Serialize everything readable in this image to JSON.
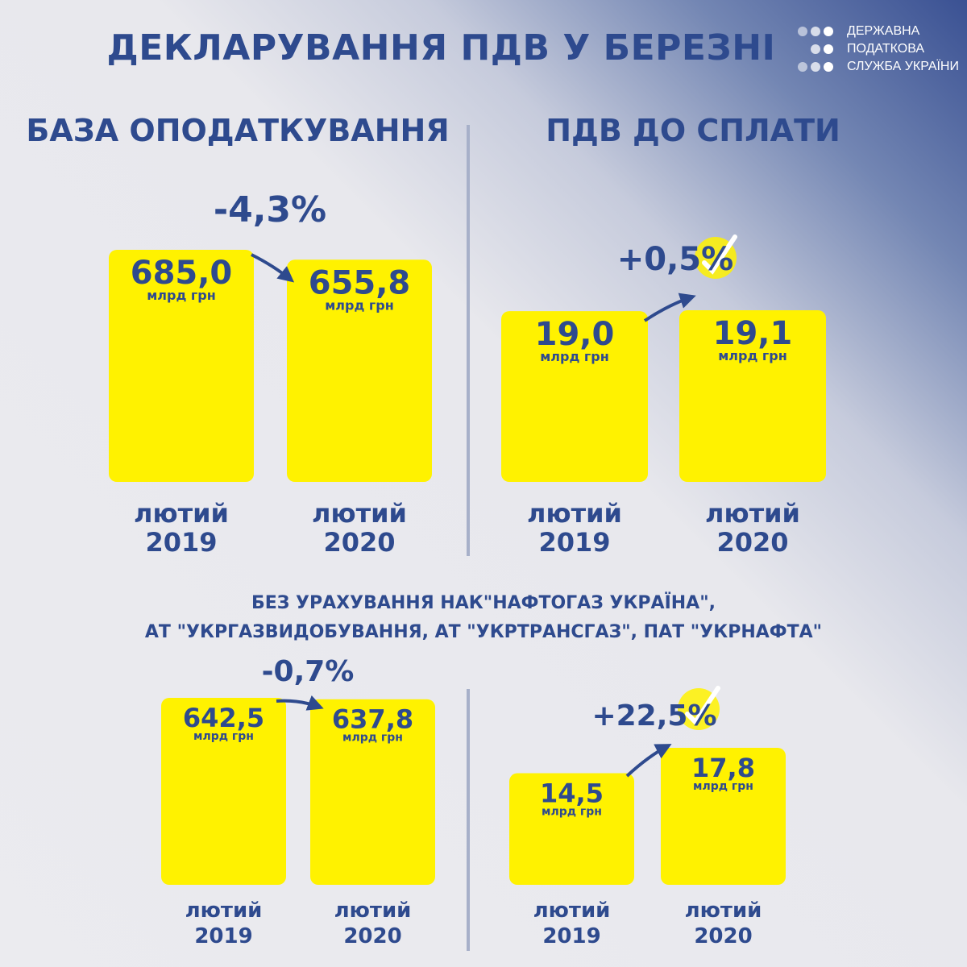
{
  "title": "ДЕКЛАРУВАННЯ ПДВ У БЕРЕЗНІ",
  "logo": {
    "lines": [
      "ДЕРЖАВНА",
      "ПОДАТКОВА",
      "СЛУЖБА УКРАЇНИ"
    ],
    "dot_color": "#ffffff"
  },
  "sections": {
    "left": "БАЗА ОПОДАТКУВАННЯ",
    "right": "ПДВ ДО СПЛАТИ"
  },
  "note": {
    "line1": "БЕЗ УРАХУВАННЯ НАК\"НАФТОГАЗ УКРАЇНА\",",
    "line2": "АТ \"УКРГАЗВИДОБУВАННЯ, АТ \"УКРТРАНСГАЗ\", ПАТ \"УКРНАФТА\""
  },
  "colors": {
    "bar": "#fff200",
    "text": "#2e4a8e",
    "divider": "#a7b0c9"
  },
  "chart_data": [
    {
      "type": "bar",
      "title": "БАЗА ОПОДАТКУВАННЯ",
      "categories": [
        "лютий 2019",
        "лютий 2020"
      ],
      "values": [
        685.0,
        655.8
      ],
      "value_labels": [
        "685,0",
        "655,8"
      ],
      "unit": "млрд грн",
      "change": "-4,3%",
      "change_icon": "arrow-icon"
    },
    {
      "type": "bar",
      "title": "ПДВ ДО СПЛАТИ",
      "categories": [
        "лютий 2019",
        "лютий 2020"
      ],
      "values": [
        19.0,
        19.1
      ],
      "value_labels": [
        "19,0",
        "19,1"
      ],
      "unit": "млрд грн",
      "change": "+0,5%",
      "change_icon": "checkmark-circle-icon"
    },
    {
      "type": "bar",
      "title": "БАЗА ОПОДАТКУВАННЯ",
      "categories": [
        "лютий 2019",
        "лютий 2020"
      ],
      "values": [
        642.5,
        637.8
      ],
      "value_labels": [
        "642,5",
        "637,8"
      ],
      "unit": "млрд грн",
      "change": "-0,7%",
      "change_icon": "arrow-icon"
    },
    {
      "type": "bar",
      "title": "ПДВ ДО СПЛАТИ",
      "categories": [
        "лютий 2019",
        "лютий 2020"
      ],
      "values": [
        14.5,
        17.8
      ],
      "value_labels": [
        "14,5",
        "17,8"
      ],
      "unit": "млрд грн",
      "change": "+22,5%",
      "change_icon": "checkmark-circle-icon"
    }
  ]
}
